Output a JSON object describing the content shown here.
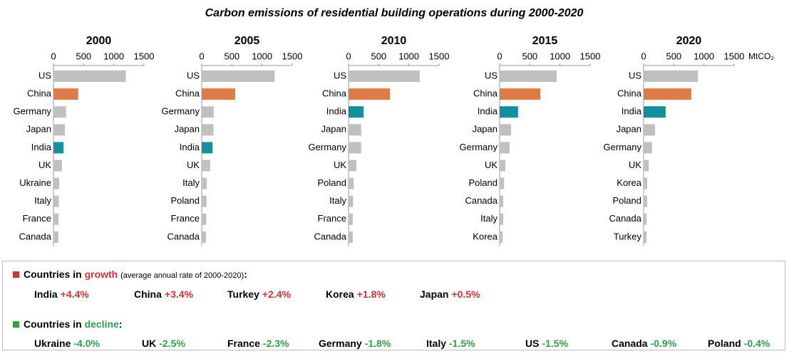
{
  "title": "Carbon emissions of residential building operations during 2000-2020",
  "chart_data": [
    {
      "type": "bar",
      "orientation": "horizontal",
      "title": "2000",
      "categories": [
        "US",
        "China",
        "Germany",
        "Japan",
        "India",
        "UK",
        "Ukraine",
        "Italy",
        "France",
        "Canada"
      ],
      "values": [
        1200,
        410,
        210,
        190,
        165,
        140,
        95,
        90,
        85,
        80
      ],
      "colors": [
        "#c0c0c0",
        "#e07b45",
        "#c0c0c0",
        "#c0c0c0",
        "#12909b",
        "#c0c0c0",
        "#c0c0c0",
        "#c0c0c0",
        "#c0c0c0",
        "#c0c0c0"
      ],
      "xlim": [
        0,
        1500
      ],
      "xticks": [
        0,
        500,
        1000,
        1500
      ]
    },
    {
      "type": "bar",
      "orientation": "horizontal",
      "title": "2005",
      "categories": [
        "US",
        "China",
        "Germany",
        "Japan",
        "India",
        "UK",
        "Italy",
        "Poland",
        "France",
        "Canada"
      ],
      "values": [
        1210,
        555,
        200,
        195,
        180,
        140,
        85,
        80,
        75,
        70
      ],
      "colors": [
        "#c0c0c0",
        "#e07b45",
        "#c0c0c0",
        "#c0c0c0",
        "#12909b",
        "#c0c0c0",
        "#c0c0c0",
        "#c0c0c0",
        "#c0c0c0",
        "#c0c0c0"
      ],
      "xlim": [
        0,
        1500
      ],
      "xticks": [
        0,
        500,
        1000,
        1500
      ]
    },
    {
      "type": "bar",
      "orientation": "horizontal",
      "title": "2010",
      "categories": [
        "US",
        "China",
        "India",
        "Japan",
        "Germany",
        "UK",
        "Poland",
        "Italy",
        "France",
        "Canada"
      ],
      "values": [
        1180,
        685,
        250,
        210,
        210,
        130,
        85,
        75,
        70,
        70
      ],
      "colors": [
        "#c0c0c0",
        "#e07b45",
        "#12909b",
        "#c0c0c0",
        "#c0c0c0",
        "#c0c0c0",
        "#c0c0c0",
        "#c0c0c0",
        "#c0c0c0",
        "#c0c0c0"
      ],
      "xlim": [
        0,
        1500
      ],
      "xticks": [
        0,
        500,
        1000,
        1500
      ]
    },
    {
      "type": "bar",
      "orientation": "horizontal",
      "title": "2015",
      "categories": [
        "US",
        "China",
        "India",
        "Japan",
        "Germany",
        "UK",
        "Poland",
        "Canada",
        "Italy",
        "Korea"
      ],
      "values": [
        945,
        675,
        305,
        190,
        165,
        95,
        75,
        60,
        60,
        50
      ],
      "colors": [
        "#c0c0c0",
        "#e07b45",
        "#12909b",
        "#c0c0c0",
        "#c0c0c0",
        "#c0c0c0",
        "#c0c0c0",
        "#c0c0c0",
        "#c0c0c0",
        "#c0c0c0"
      ],
      "xlim": [
        0,
        1500
      ],
      "xticks": [
        0,
        500,
        1000,
        1500
      ]
    },
    {
      "type": "bar",
      "orientation": "horizontal",
      "title": "2020",
      "xlabel": "MtCO₂",
      "categories": [
        "US",
        "China",
        "India",
        "Japan",
        "Germany",
        "UK",
        "Korea",
        "Poland",
        "Canada",
        "Turkey"
      ],
      "values": [
        900,
        790,
        365,
        190,
        140,
        85,
        60,
        60,
        50,
        50
      ],
      "colors": [
        "#c0c0c0",
        "#e07b45",
        "#12909b",
        "#c0c0c0",
        "#c0c0c0",
        "#c0c0c0",
        "#c0c0c0",
        "#c0c0c0",
        "#c0c0c0",
        "#c0c0c0"
      ],
      "xlim": [
        0,
        1500
      ],
      "xticks": [
        0,
        500,
        1000,
        1500
      ]
    }
  ],
  "growth": {
    "prefix": "Countries in",
    "keyword": "growth",
    "note": "(average annual rate of 2000-2020)",
    "suffix": ":",
    "color": "#d0323c",
    "items": [
      {
        "country": "India",
        "rate": "+4.4%"
      },
      {
        "country": "China",
        "rate": "+3.4%"
      },
      {
        "country": "Turkey",
        "rate": "+2.4%"
      },
      {
        "country": "Korea",
        "rate": "+1.8%"
      },
      {
        "country": "Japan",
        "rate": "+0.5%"
      }
    ]
  },
  "decline": {
    "prefix": "Countries in",
    "keyword": "decline",
    "suffix": ":",
    "color": "#2ea04a",
    "items": [
      {
        "country": "Ukraine",
        "rate": "-4.0%"
      },
      {
        "country": "UK",
        "rate": "-2.5%"
      },
      {
        "country": "France",
        "rate": "-2.3%"
      },
      {
        "country": "Germany",
        "rate": "-1.8%"
      },
      {
        "country": "Italy",
        "rate": "-1.5%"
      },
      {
        "country": "US",
        "rate": "-1.5%"
      },
      {
        "country": "Canada",
        "rate": "-0.9%"
      },
      {
        "country": "Poland",
        "rate": "-0.4%"
      }
    ]
  }
}
